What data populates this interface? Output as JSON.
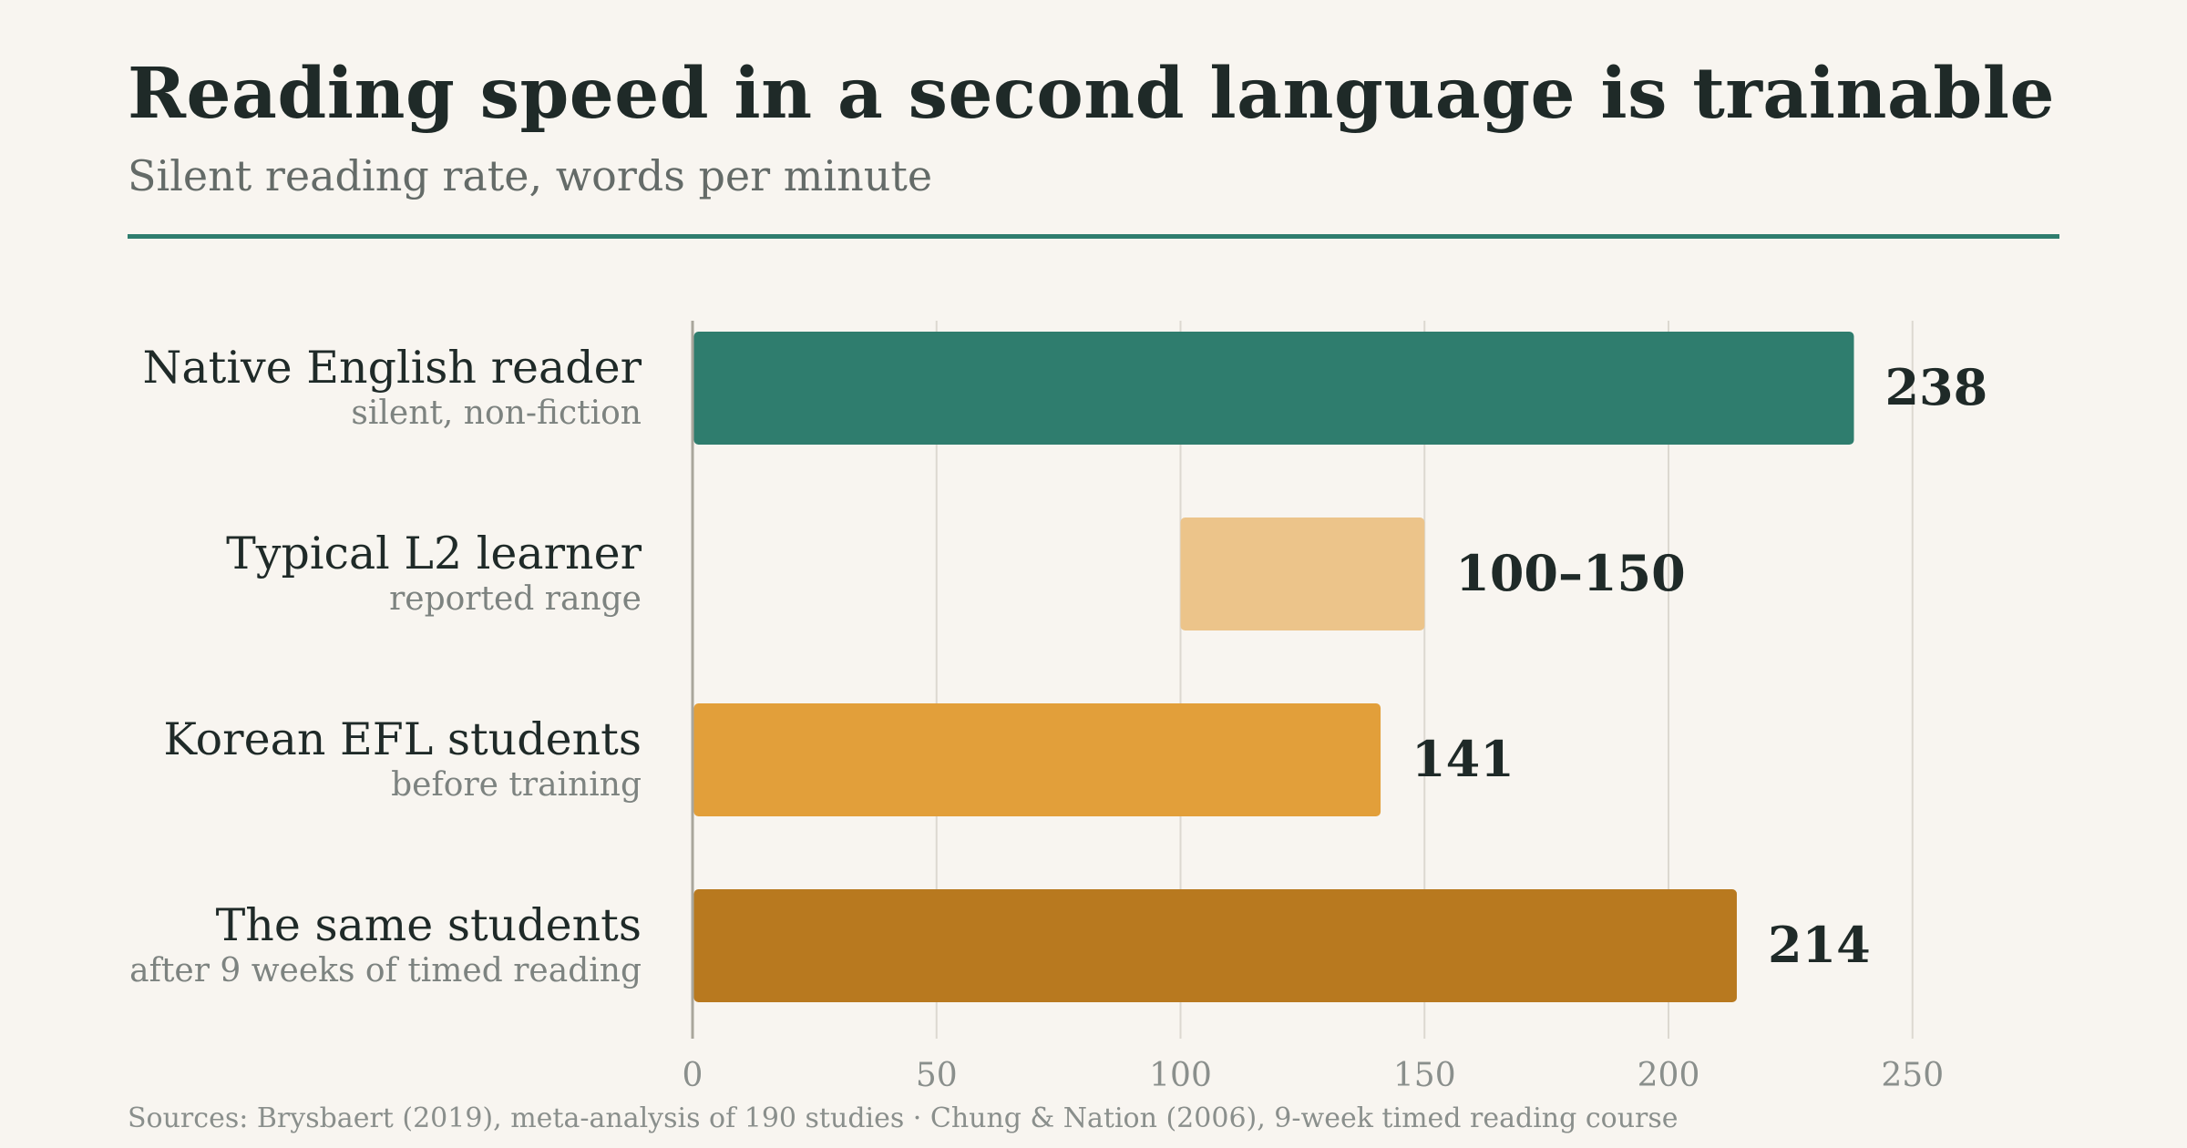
{
  "title": "Reading speed in a second language is trainable",
  "subtitle": "Silent reading rate, words per minute",
  "source": "Sources: Brysbaert (2019), meta-analysis of 190 studies · Chung & Nation (2006), 9-week timed reading course",
  "colors": {
    "accent": "#2f7d6e",
    "native": "#2f7d6e",
    "range": "#ecc48a",
    "before": "#e29f3a",
    "after": "#b8791f"
  },
  "chart_data": {
    "type": "bar",
    "orientation": "horizontal",
    "title": "Reading speed in a second language is trainable",
    "subtitle": "Silent reading rate, words per minute",
    "xlim": [
      0,
      280
    ],
    "xticks": [
      0,
      50,
      100,
      150,
      200,
      250
    ],
    "grid": true,
    "categories": [
      {
        "label": "Native English reader",
        "sublabel": "silent, non-fiction",
        "start": 0,
        "end": 238,
        "value_label": "238",
        "color": "#2f7d6e"
      },
      {
        "label": "Typical L2 learner",
        "sublabel": "reported range",
        "start": 100,
        "end": 150,
        "value_label": "100–150",
        "color": "#ecc48a"
      },
      {
        "label": "Korean EFL students",
        "sublabel": "before training",
        "start": 0,
        "end": 141,
        "value_label": "141",
        "color": "#e29f3a"
      },
      {
        "label": "The same students",
        "sublabel": "after 9 weeks of timed reading",
        "start": 0,
        "end": 214,
        "value_label": "214",
        "color": "#b8791f"
      }
    ]
  }
}
